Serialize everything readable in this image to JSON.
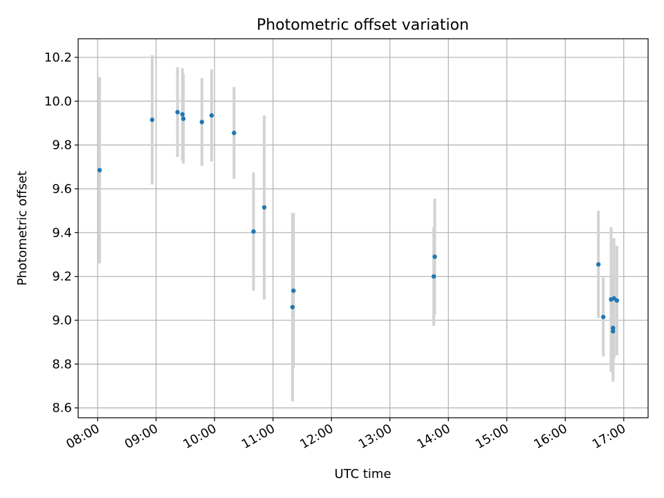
{
  "chart_data": {
    "type": "scatter",
    "title": "Photometric offset variation",
    "xlabel": "UTC time",
    "ylabel": "Photometric offset",
    "x_axis_kind": "time",
    "xlim": [
      "07:40",
      "17:25"
    ],
    "ylim": [
      8.555,
      10.285
    ],
    "grid": true,
    "x_ticks": [
      "08:00",
      "09:00",
      "10:00",
      "11:00",
      "12:00",
      "13:00",
      "14:00",
      "15:00",
      "16:00",
      "17:00"
    ],
    "y_ticks": [
      8.6,
      8.8,
      9.0,
      9.2,
      9.4,
      9.6,
      9.8,
      10.0,
      10.2
    ],
    "y_tick_labels": [
      "8.6",
      "8.8",
      "9.0",
      "9.2",
      "9.4",
      "9.6",
      "9.8",
      "10.0",
      "10.2"
    ],
    "marker_color": "#1f77b4",
    "errorbar_color": "#d3d3d3",
    "points": [
      {
        "x": "08:02",
        "y": 9.685,
        "yerr": 0.425
      },
      {
        "x": "08:56",
        "y": 9.915,
        "yerr": 0.295
      },
      {
        "x": "09:22",
        "y": 9.95,
        "yerr": 0.205
      },
      {
        "x": "09:27",
        "y": 9.94,
        "yerr": 0.21
      },
      {
        "x": "09:28",
        "y": 9.92,
        "yerr": 0.205
      },
      {
        "x": "09:47",
        "y": 9.905,
        "yerr": 0.2
      },
      {
        "x": "09:57",
        "y": 9.935,
        "yerr": 0.21
      },
      {
        "x": "10:20",
        "y": 9.855,
        "yerr": 0.21
      },
      {
        "x": "10:40",
        "y": 9.405,
        "yerr": 0.27
      },
      {
        "x": "10:51",
        "y": 9.515,
        "yerr": 0.42
      },
      {
        "x": "11:20",
        "y": 9.06,
        "yerr": 0.43
      },
      {
        "x": "11:21",
        "y": 9.135,
        "yerr": 0.355
      },
      {
        "x": "13:45",
        "y": 9.2,
        "yerr": 0.225
      },
      {
        "x": "13:46",
        "y": 9.29,
        "yerr": 0.265
      },
      {
        "x": "16:34",
        "y": 9.255,
        "yerr": 0.245
      },
      {
        "x": "16:39",
        "y": 9.015,
        "yerr": 0.18
      },
      {
        "x": "16:47",
        "y": 9.095,
        "yerr": 0.33
      },
      {
        "x": "16:49",
        "y": 8.95,
        "yerr": 0.2
      },
      {
        "x": "16:49",
        "y": 8.965,
        "yerr": 0.245
      },
      {
        "x": "16:50",
        "y": 9.1,
        "yerr": 0.275
      },
      {
        "x": "16:53",
        "y": 9.09,
        "yerr": 0.25
      }
    ]
  }
}
